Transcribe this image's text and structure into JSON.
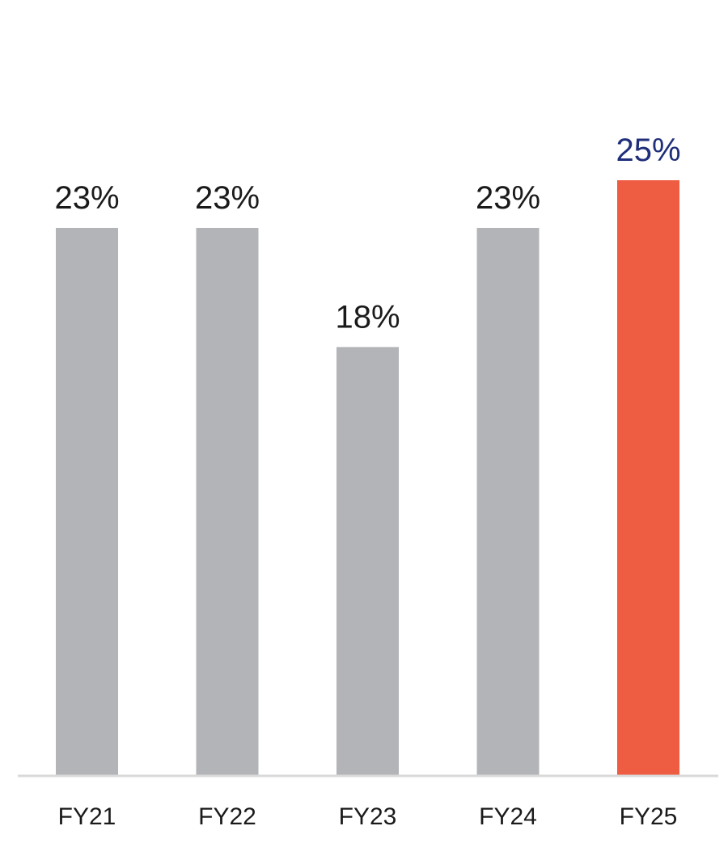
{
  "chart_data": {
    "type": "bar",
    "categories": [
      "FY21",
      "FY22",
      "FY23",
      "FY24",
      "FY25"
    ],
    "values": [
      23,
      23,
      18,
      23,
      25
    ],
    "data_labels": [
      "23%",
      "23%",
      "18%",
      "23%",
      "25%"
    ],
    "unit": "%",
    "ylim": [
      0,
      25
    ],
    "grid": false,
    "legend": "none",
    "title": "",
    "xlabel": "",
    "ylabel": ""
  },
  "colors": {
    "bar_default": "#b3b4b7",
    "bar_highlight": "#ee5c41",
    "label_default": "#1a1a1a",
    "label_highlight": "#1f2e7a",
    "baseline": "#d9d9d9"
  },
  "highlight_category": "FY25"
}
